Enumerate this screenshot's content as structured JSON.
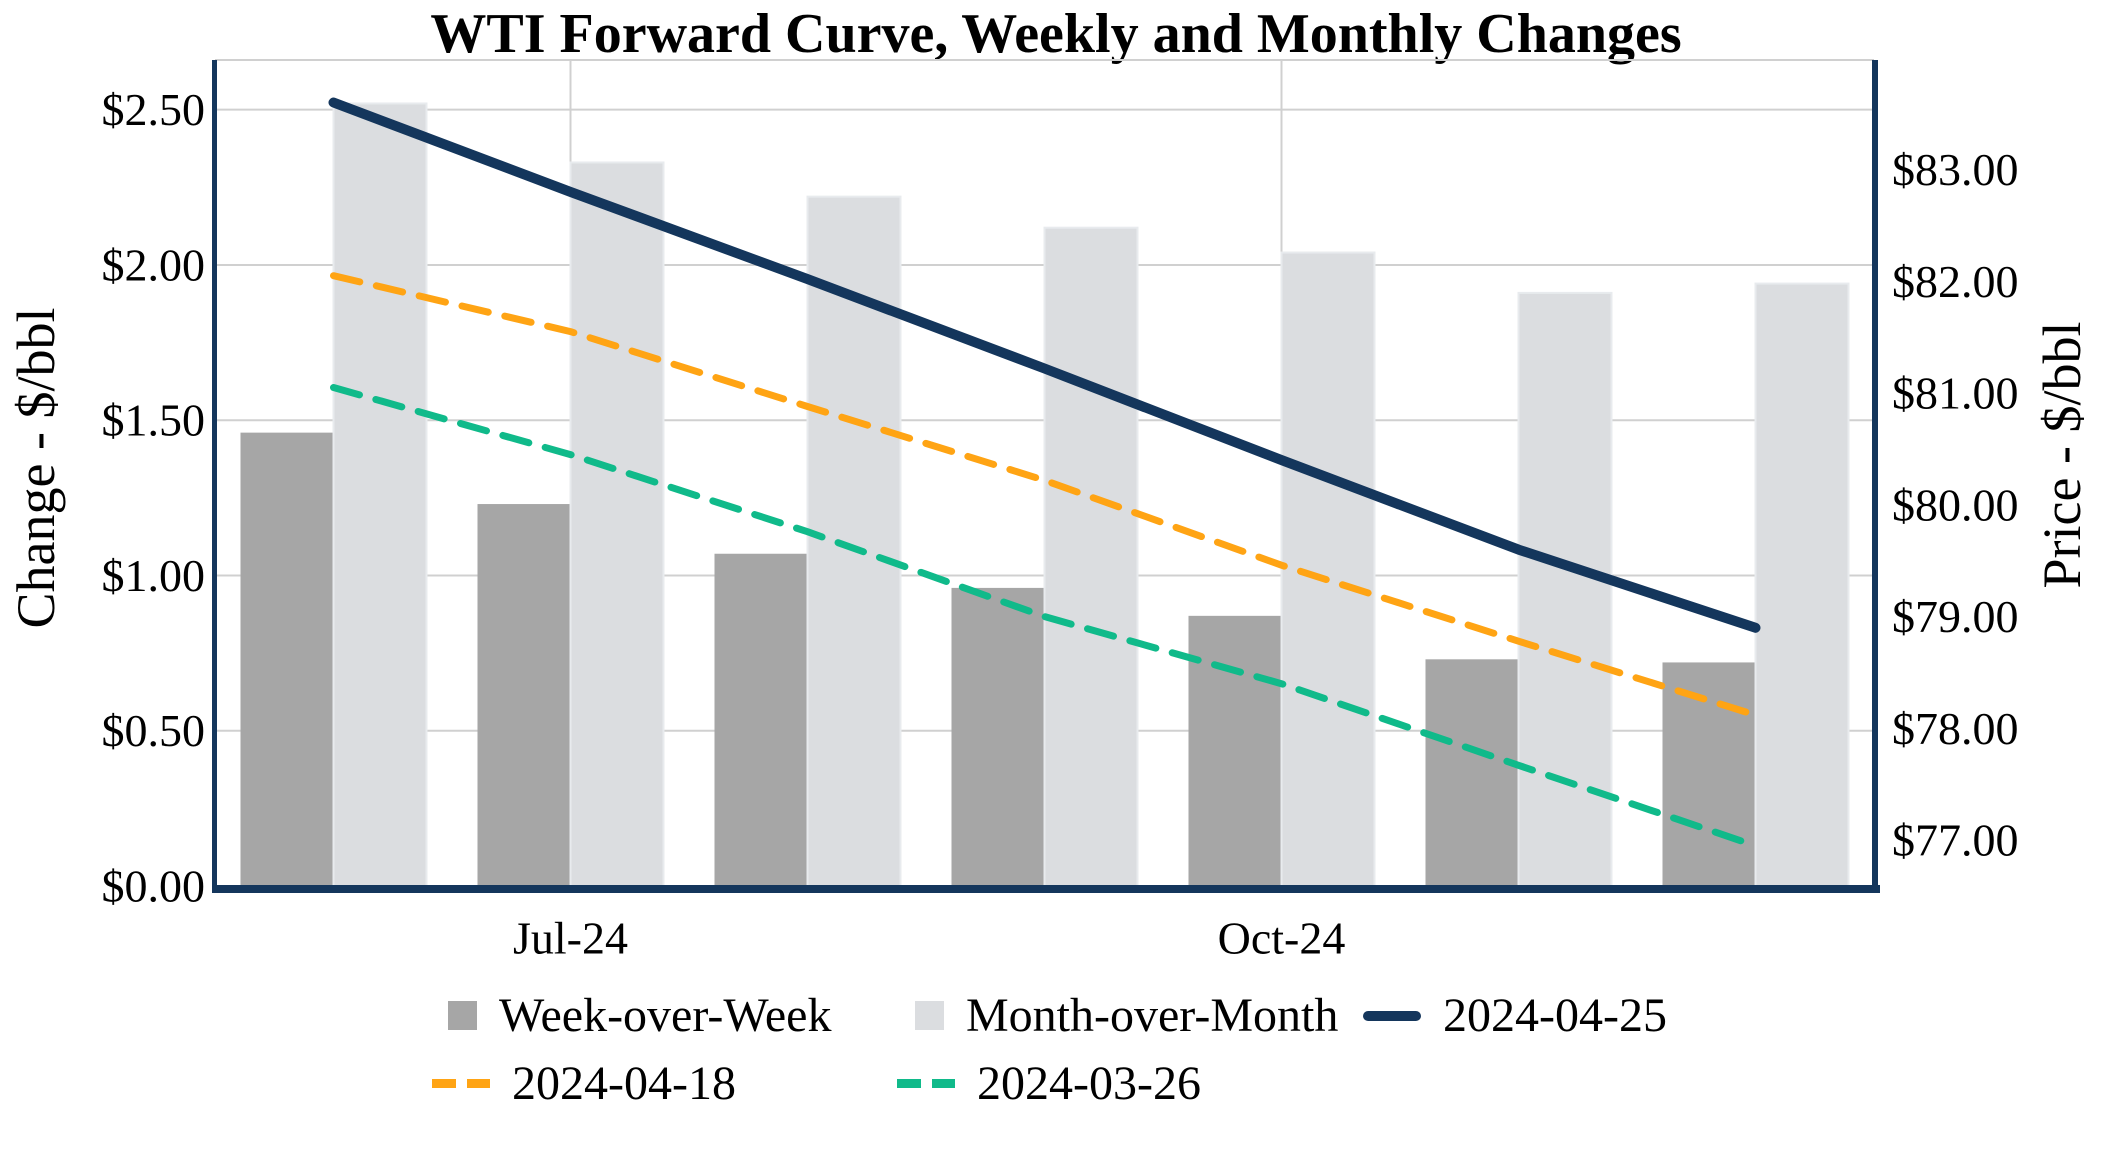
{
  "title": "WTI Forward Curve, Weekly and Monthly Changes",
  "chart_data": {
    "type": "combo",
    "title": "WTI Forward Curve, Weekly and Monthly Changes",
    "n_groups": 7,
    "x_ticks": [
      {
        "group_index": 1,
        "label": "Jul-24"
      },
      {
        "group_index": 4,
        "label": "Oct-24"
      }
    ],
    "left_axis": {
      "title": "Change - $/bbl",
      "tick_labels": [
        "$0.00",
        "$0.50",
        "$1.00",
        "$1.50",
        "$2.00",
        "$2.50"
      ],
      "tick_values": [
        0,
        0.5,
        1.0,
        1.5,
        2.0,
        2.5
      ],
      "range": [
        0,
        2.66
      ],
      "grid": true
    },
    "right_axis": {
      "title": "Price - $/bbl",
      "tick_labels": [
        "$77.00",
        "$78.00",
        "$79.00",
        "$80.00",
        "$81.00",
        "$82.00",
        "$83.00"
      ],
      "tick_values": [
        77,
        78,
        79,
        80,
        81,
        82,
        83
      ],
      "range": [
        76.59,
        83.98
      ],
      "grid": false
    },
    "series": [
      {
        "name": "Week-over-Week",
        "type": "bar",
        "axis": "left",
        "color": "#A6A6A6",
        "values": [
          1.46,
          1.23,
          1.07,
          0.96,
          0.87,
          0.73,
          0.72
        ]
      },
      {
        "name": "Month-over-Month",
        "type": "bar",
        "axis": "left",
        "color": "#DBDDE0",
        "values": [
          2.52,
          2.33,
          2.22,
          2.12,
          2.04,
          1.91,
          1.94
        ]
      },
      {
        "name": "2024-04-25",
        "type": "line",
        "style": "solid",
        "axis": "right",
        "color": "#14365C",
        "values": [
          83.6,
          82.8,
          82.02,
          81.22,
          80.4,
          79.6,
          78.9
        ]
      },
      {
        "name": "2024-04-18",
        "type": "line",
        "style": "dashed",
        "axis": "right",
        "color": "#FFA414",
        "values": [
          82.05,
          81.55,
          80.88,
          80.22,
          79.46,
          78.78,
          78.12
        ]
      },
      {
        "name": "2024-03-26",
        "type": "line",
        "style": "dashed",
        "axis": "right",
        "color": "#10BA8A",
        "values": [
          81.05,
          80.45,
          79.76,
          79.0,
          78.4,
          77.67,
          76.95
        ]
      }
    ],
    "colors": {
      "grid": "#D0D0D0",
      "axis": "#14365C",
      "bar_light_edge": "#E8EBEE"
    },
    "legend_position": "bottom"
  },
  "legend": {
    "rows": [
      [
        {
          "series": 0
        },
        {
          "series": 1
        },
        {
          "series": 2
        }
      ],
      [
        {
          "series": 3
        },
        {
          "series": 4
        }
      ]
    ]
  }
}
